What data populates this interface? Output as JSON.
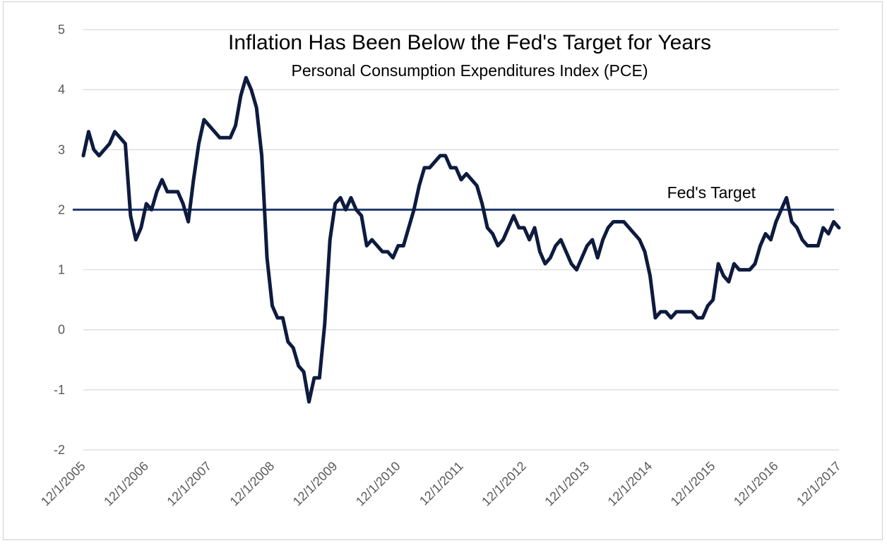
{
  "chart_data": {
    "type": "line",
    "title": "Inflation Has Been Below the Fed's Target for Years",
    "subtitle": "Personal Consumption Expenditures Index (PCE)",
    "xlabel": "",
    "ylabel": "",
    "ylim": [
      -2,
      5
    ],
    "yticks": [
      "5",
      "4",
      "3",
      "2",
      "1",
      "0",
      "-1",
      "-2"
    ],
    "xticks": [
      "12/1/2005",
      "12/1/2006",
      "12/1/2007",
      "12/1/2008",
      "12/1/2009",
      "12/1/2010",
      "12/1/2011",
      "12/1/2012",
      "12/1/2013",
      "12/1/2014",
      "12/1/2015",
      "12/1/2016",
      "12/1/2017"
    ],
    "grid": true,
    "legend": "none",
    "target": {
      "label": "Fed's Target",
      "value": 2,
      "color": "#1f3a6e"
    },
    "series": [
      {
        "color": "#0d1b3e",
        "values": [
          2.9,
          3.3,
          3.0,
          2.9,
          3.0,
          3.1,
          3.3,
          3.2,
          3.1,
          1.9,
          1.5,
          1.7,
          2.1,
          2.0,
          2.3,
          2.5,
          2.3,
          2.3,
          2.3,
          2.1,
          1.8,
          2.5,
          3.1,
          3.5,
          3.4,
          3.3,
          3.2,
          3.2,
          3.2,
          3.4,
          3.9,
          4.2,
          4.0,
          3.7,
          2.9,
          1.2,
          0.4,
          0.2,
          0.2,
          -0.2,
          -0.3,
          -0.6,
          -0.7,
          -1.2,
          -0.8,
          -0.8,
          0.1,
          1.5,
          2.1,
          2.2,
          2.0,
          2.2,
          2.0,
          1.9,
          1.4,
          1.5,
          1.4,
          1.3,
          1.3,
          1.2,
          1.4,
          1.4,
          1.7,
          2.0,
          2.4,
          2.7,
          2.7,
          2.8,
          2.9,
          2.9,
          2.7,
          2.7,
          2.5,
          2.6,
          2.5,
          2.4,
          2.1,
          1.7,
          1.6,
          1.4,
          1.5,
          1.7,
          1.9,
          1.7,
          1.7,
          1.5,
          1.7,
          1.3,
          1.1,
          1.2,
          1.4,
          1.5,
          1.3,
          1.1,
          1.0,
          1.2,
          1.4,
          1.5,
          1.2,
          1.5,
          1.7,
          1.8,
          1.8,
          1.8,
          1.7,
          1.6,
          1.5,
          1.3,
          0.9,
          0.2,
          0.3,
          0.3,
          0.2,
          0.3,
          0.3,
          0.3,
          0.3,
          0.2,
          0.2,
          0.4,
          0.5,
          1.1,
          0.9,
          0.8,
          1.1,
          1.0,
          1.0,
          1.0,
          1.1,
          1.4,
          1.6,
          1.5,
          1.8,
          2.0,
          2.2,
          1.8,
          1.7,
          1.5,
          1.4,
          1.4,
          1.4,
          1.7,
          1.6,
          1.8,
          1.7
        ]
      }
    ]
  }
}
